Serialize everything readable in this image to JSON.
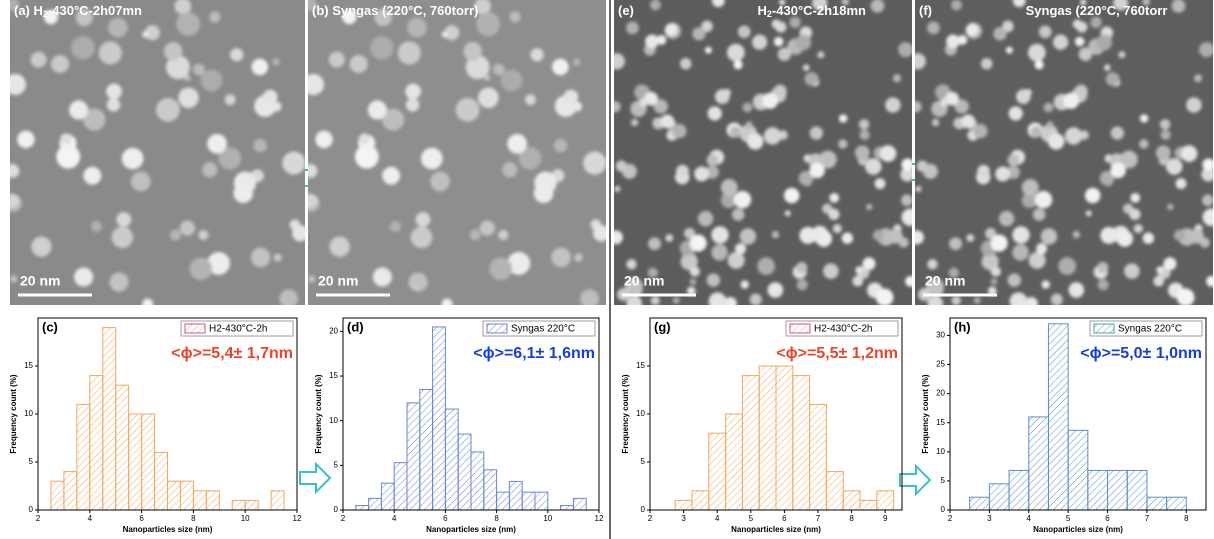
{
  "images": [
    {
      "tag": "(a)",
      "title": [
        "H",
        "2",
        "-430°C-2h07mn"
      ],
      "scale_bar": "20 nm"
    },
    {
      "tag": "(b)",
      "title": [
        "Syngas  (220°C, 760torr)"
      ],
      "scale_bar": "20 nm"
    },
    {
      "tag": "(e)",
      "title": [
        "H",
        "2",
        "-430°C-2h18mn"
      ],
      "scale_bar": "20 nm"
    },
    {
      "tag": "(f)",
      "title": [
        "Syngas  (220°C, 760torr"
      ],
      "scale_bar": "20 nm"
    }
  ],
  "chart_data": [
    {
      "type": "histogram",
      "panel": "(c)",
      "legend": "H2-430°C-2h",
      "annotation": "<ϕ>=5,4± 1,7nm",
      "color": "#f0a860",
      "legend_edge": "#d04ca0",
      "annotation_color": "#e8452c",
      "x_label": "Nanoparticles size (nm)",
      "y_label": "Frequency count (%)",
      "bins": [
        2.5,
        3,
        3.5,
        4,
        4.5,
        5,
        5.5,
        6,
        6.5,
        7,
        7.5,
        8,
        8.5,
        9,
        9.5,
        10,
        10.5,
        11,
        11.5
      ],
      "values": [
        3,
        4,
        11,
        14,
        19,
        13,
        10,
        10,
        6,
        3,
        3,
        2,
        2,
        0,
        1,
        1,
        0,
        2
      ],
      "xlim": [
        2,
        12
      ],
      "xticks": [
        2,
        4,
        6,
        8,
        10,
        12
      ],
      "ylim": [
        0,
        20
      ],
      "yticks": [
        0,
        5,
        10,
        15
      ]
    },
    {
      "type": "histogram",
      "panel": "(d)",
      "legend": "Syngas 220°C",
      "annotation": "<ϕ>=6,1± 1,6nm",
      "color": "#6a86d0",
      "legend_edge": "#6a86d0",
      "annotation_color": "#1a3fd6",
      "x_label": "Nanoparticles size (nm)",
      "y_label": "Frequency count (%)",
      "bins": [
        2.5,
        3,
        3.5,
        4,
        4.5,
        5,
        5.5,
        6,
        6.5,
        7,
        7.5,
        8,
        8.5,
        9,
        9.5,
        10,
        10.5,
        11,
        11.5
      ],
      "values": [
        0.5,
        1.3,
        3,
        5.3,
        12,
        13.5,
        20.5,
        11.3,
        8.5,
        6.5,
        4.5,
        2,
        3.2,
        2,
        2,
        0,
        0.5,
        1.3
      ],
      "xlim": [
        2,
        12
      ],
      "xticks": [
        2,
        4,
        6,
        8,
        10,
        12
      ],
      "ylim": [
        0,
        21.5
      ],
      "yticks": [
        0,
        5,
        10,
        15,
        20
      ]
    },
    {
      "type": "histogram",
      "panel": "(g)",
      "legend": "H2-430°C-2h",
      "annotation": "<ϕ>=5,5± 1,2nm",
      "color": "#f0a860",
      "legend_edge": "#d04ca0",
      "annotation_color": "#e8452c",
      "x_label": "Nanoparticles size (nm)",
      "y_label": "Frequency count (%)",
      "bins": [
        2.75,
        3.25,
        3.75,
        4.25,
        4.75,
        5.25,
        5.75,
        6.25,
        6.75,
        7.25,
        7.75,
        8.25,
        8.75,
        9.25
      ],
      "values": [
        1,
        2,
        8,
        10,
        14,
        15,
        15,
        14,
        11,
        4,
        2,
        1,
        2
      ],
      "xlim": [
        2,
        9.5
      ],
      "xticks": [
        2,
        3,
        4,
        5,
        6,
        7,
        8,
        9
      ],
      "ylim": [
        0,
        20
      ],
      "yticks": [
        0,
        5,
        10,
        15
      ]
    },
    {
      "type": "histogram",
      "panel": "(h)",
      "legend": "Syngas 220°C",
      "annotation": "<ϕ>=5,0± 1,0nm",
      "color": "#5a8ec8",
      "legend_edge": "#4aa890",
      "annotation_color": "#1a3fd6",
      "x_label": "Nanoparticles size (nm)",
      "y_label": "Frequency count (%)",
      "bins": [
        2.5,
        3,
        3.5,
        4,
        4.5,
        5,
        5.5,
        6,
        6.5,
        7,
        7.5,
        8
      ],
      "values": [
        2.2,
        4.5,
        6.8,
        16,
        32,
        13.7,
        6.8,
        6.8,
        6.8,
        2.2,
        2.2
      ],
      "xlim": [
        2,
        8.5
      ],
      "xticks": [
        2,
        3,
        4,
        5,
        6,
        7,
        8
      ],
      "ylim": [
        0,
        33
      ],
      "yticks": [
        0,
        5,
        10,
        15,
        20,
        25,
        30
      ]
    }
  ]
}
